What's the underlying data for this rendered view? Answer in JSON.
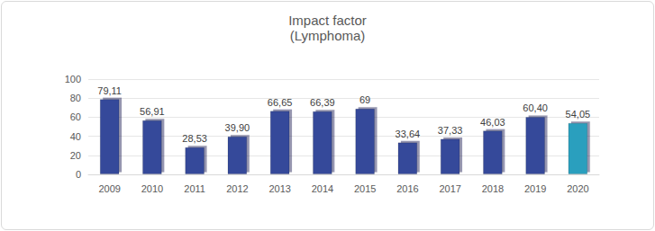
{
  "chart_data": {
    "type": "bar",
    "title": "Impact factor",
    "subtitle": "(Lymphoma)",
    "categories": [
      "2009",
      "2010",
      "2011",
      "2012",
      "2013",
      "2014",
      "2015",
      "2016",
      "2017",
      "2018",
      "2019",
      "2020"
    ],
    "values": [
      79.11,
      56.91,
      28.53,
      39.9,
      66.65,
      66.39,
      69,
      33.64,
      37.33,
      46.03,
      60.4,
      54.05
    ],
    "value_labels": [
      "79,11",
      "56,91",
      "28,53",
      "39,90",
      "66,65",
      "66,39",
      "69",
      "33,64",
      "37,33",
      "46,03",
      "60,40",
      "54,05"
    ],
    "colors": [
      "#34489a",
      "#34489a",
      "#34489a",
      "#34489a",
      "#34489a",
      "#34489a",
      "#34489a",
      "#34489a",
      "#34489a",
      "#34489a",
      "#34489a",
      "#2a9fbe"
    ],
    "ylim": [
      0,
      100
    ],
    "yticks": [
      0,
      20,
      40,
      60,
      80,
      100
    ],
    "grid": true,
    "data_labels": true
  }
}
